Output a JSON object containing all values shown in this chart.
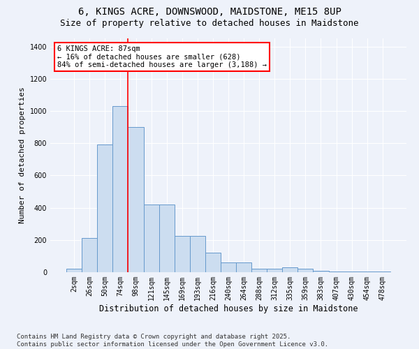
{
  "title1": "6, KINGS ACRE, DOWNSWOOD, MAIDSTONE, ME15 8UP",
  "title2": "Size of property relative to detached houses in Maidstone",
  "xlabel": "Distribution of detached houses by size in Maidstone",
  "ylabel": "Number of detached properties",
  "categories": [
    "2sqm",
    "26sqm",
    "50sqm",
    "74sqm",
    "98sqm",
    "121sqm",
    "145sqm",
    "169sqm",
    "193sqm",
    "216sqm",
    "240sqm",
    "264sqm",
    "288sqm",
    "312sqm",
    "335sqm",
    "359sqm",
    "383sqm",
    "407sqm",
    "430sqm",
    "454sqm",
    "478sqm"
  ],
  "values": [
    20,
    210,
    790,
    1030,
    900,
    420,
    420,
    225,
    225,
    120,
    60,
    60,
    20,
    20,
    30,
    20,
    10,
    5,
    3,
    3,
    3
  ],
  "bar_color": "#ccddf0",
  "bar_edge_color": "#6699cc",
  "vline_index": 3.5,
  "annotation_text": "6 KINGS ACRE: 87sqm\n← 16% of detached houses are smaller (628)\n84% of semi-detached houses are larger (3,188) →",
  "annotation_box_color": "white",
  "annotation_box_edge": "red",
  "vline_color": "red",
  "ylim": [
    0,
    1450
  ],
  "yticks": [
    0,
    200,
    400,
    600,
    800,
    1000,
    1200,
    1400
  ],
  "background_color": "#eef2fa",
  "grid_color": "white",
  "footnote": "Contains HM Land Registry data © Crown copyright and database right 2025.\nContains public sector information licensed under the Open Government Licence v3.0.",
  "title1_fontsize": 10,
  "title2_fontsize": 9,
  "xlabel_fontsize": 8.5,
  "ylabel_fontsize": 8,
  "tick_fontsize": 7,
  "annot_fontsize": 7.5,
  "footnote_fontsize": 6.5
}
